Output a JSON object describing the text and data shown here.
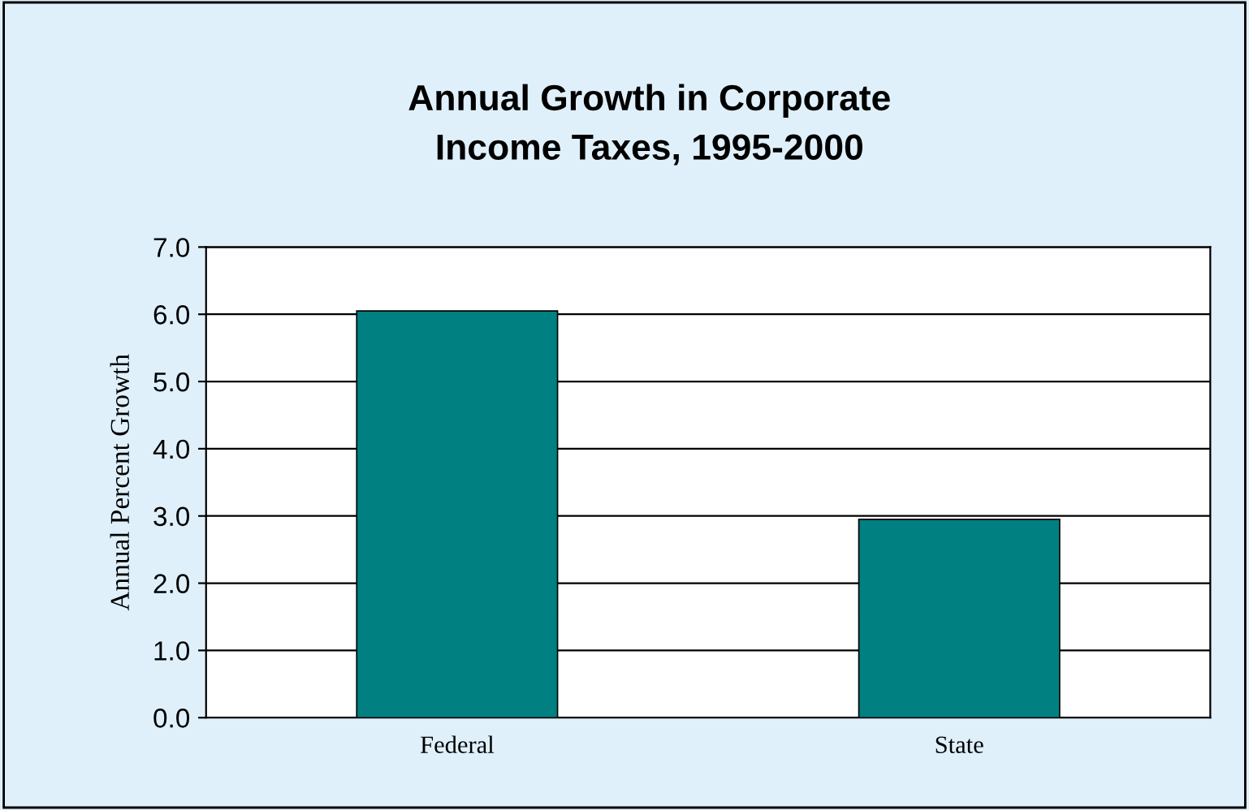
{
  "chart_data": {
    "type": "bar",
    "title": "Annual Growth in Corporate\nIncome Taxes, 1995-2000",
    "ylabel": "Annual Percent Growth",
    "categories": [
      "Federal",
      "State"
    ],
    "values": [
      6.05,
      2.95
    ],
    "color": "#008080",
    "ylim": [
      0,
      7
    ],
    "yticks": [
      {
        "value": 0,
        "label": "0.0"
      },
      {
        "value": 1,
        "label": "1.0"
      },
      {
        "value": 2,
        "label": "2.0"
      },
      {
        "value": 3,
        "label": "3.0"
      },
      {
        "value": 4,
        "label": "4.0"
      },
      {
        "value": 5,
        "label": "5.0"
      },
      {
        "value": 6,
        "label": "6.0"
      },
      {
        "value": 7,
        "label": "7.0"
      }
    ],
    "grid": "y",
    "legend": false
  }
}
